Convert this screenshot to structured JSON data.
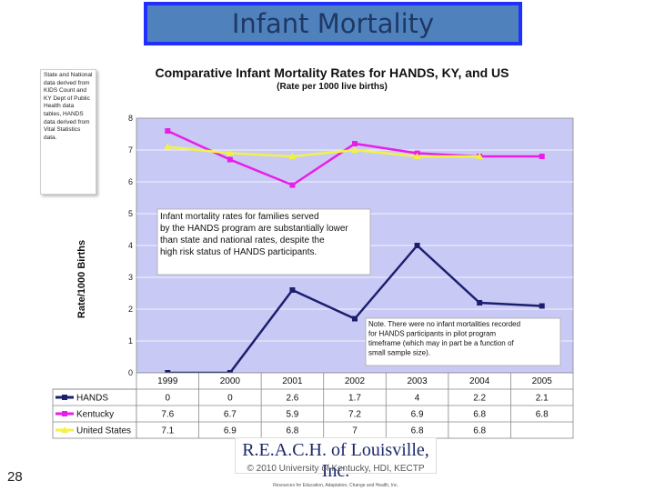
{
  "slide": {
    "title": "Infant Mortality",
    "page_number": "28",
    "source_note": "State and National data derived from KIDS Count and KY Dept of Public Health data tables, HANDS data derived from Vital Statistics data.",
    "logo_text": "R.E.A.C.H. of Louisville, Inc.",
    "logo_tagline": "Resources for Education, Adaptation, Change and Health, Inc.",
    "copyright": "© 2010 University of Kentucky, HDI, KECTP"
  },
  "chart_data": {
    "type": "line",
    "title": "Comparative Infant Mortality Rates for HANDS, KY, and US",
    "subtitle": "(Rate per 1000 live births)",
    "ylabel": "Rate/1000 Births",
    "xlabel": "",
    "ylim": [
      0,
      8
    ],
    "yticks": [
      0,
      1,
      2,
      3,
      4,
      5,
      6,
      7,
      8
    ],
    "categories": [
      "1999",
      "2000",
      "2001",
      "2002",
      "2003",
      "2004",
      "2005"
    ],
    "series": [
      {
        "name": "HANDS",
        "color": "#1b1f6e",
        "marker": "square",
        "values": [
          0,
          0,
          2.6,
          1.7,
          4,
          2.2,
          2.1
        ],
        "labels": [
          "0",
          "0",
          "2.6",
          "1.7",
          "4",
          "2.2",
          "2.1"
        ]
      },
      {
        "name": "Kentucky",
        "color": "#e81ee8",
        "marker": "square",
        "values": [
          7.6,
          6.7,
          5.9,
          7.2,
          6.9,
          6.8,
          6.8
        ],
        "labels": [
          "7.6",
          "6.7",
          "5.9",
          "7.2",
          "6.9",
          "6.8",
          "6.8"
        ]
      },
      {
        "name": "United States",
        "color": "#f2f246",
        "marker": "triangle",
        "values": [
          7.1,
          6.9,
          6.8,
          7,
          6.8,
          6.8,
          null
        ],
        "labels": [
          "7.1",
          "6.9",
          "6.8",
          "7",
          "6.8",
          "6.8",
          ""
        ]
      }
    ],
    "annotations": [
      "Infant mortality rates for families served by the HANDS program are substantially lower than state and national rates, despite the high risk status of HANDS participants.",
      "Note. There were no infant mortalities recorded for HANDS participants in pilot program timeframe (which may in part be a function of small sample size)."
    ],
    "grid": true,
    "legend": "table-below"
  }
}
